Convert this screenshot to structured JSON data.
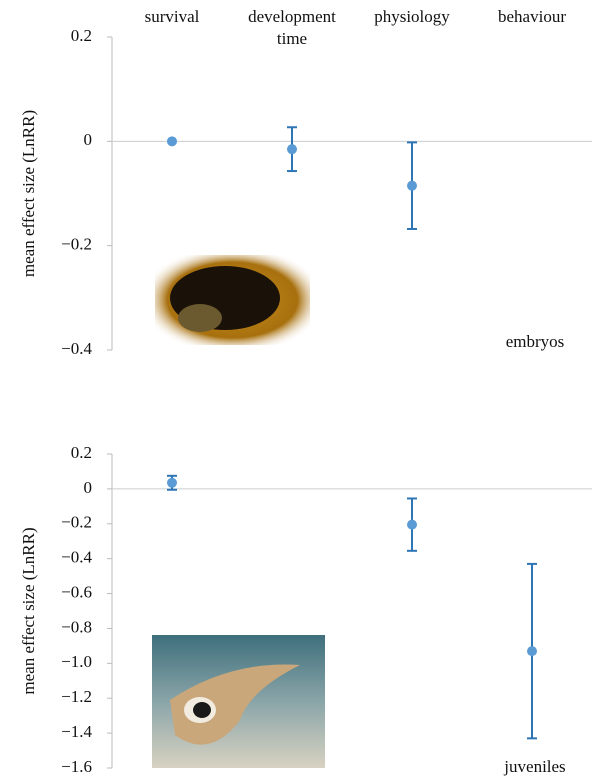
{
  "chart_data": [
    {
      "type": "errorbar",
      "categories": [
        "survival",
        "development time",
        "physiology",
        "behaviour"
      ],
      "ylabel": "mean effect size (LnRR)",
      "values": [
        0,
        -0.015,
        -0.085,
        null
      ],
      "errors": [
        0,
        0.042,
        0.083,
        null
      ],
      "ylim": [
        -0.4,
        0.2
      ],
      "yticks": [
        0.2,
        0,
        {
          "value": -0.2,
          "label": "−0.2"
        },
        {
          "value": -0.4,
          "label": "−0.4"
        }
      ],
      "annotation": "embryos",
      "color": "#5b9bd5",
      "error_color": "#2e75b6"
    },
    {
      "type": "errorbar",
      "ylabel": "mean effect size (LnRR)",
      "values": [
        0.035,
        null,
        -0.205,
        -0.93
      ],
      "errors": [
        0.04,
        null,
        0.15,
        0.5
      ],
      "ylim": [
        -1.6,
        0.2
      ],
      "yticks": [
        0.2,
        0,
        {
          "value": -0.2,
          "label": "−0.2"
        },
        {
          "value": -0.4,
          "label": "−0.4"
        },
        {
          "value": -0.6,
          "label": "−0.6"
        },
        {
          "value": -0.8,
          "label": "−0.8"
        },
        {
          "value": -1.0,
          "label": "−1.0"
        },
        {
          "value": -1.2,
          "label": "−1.2"
        },
        {
          "value": -1.4,
          "label": "−1.4"
        },
        {
          "value": -1.6,
          "label": "−1.6"
        }
      ],
      "annotation": "juveniles",
      "color": "#5b9bd5",
      "error_color": "#2e75b6"
    }
  ]
}
